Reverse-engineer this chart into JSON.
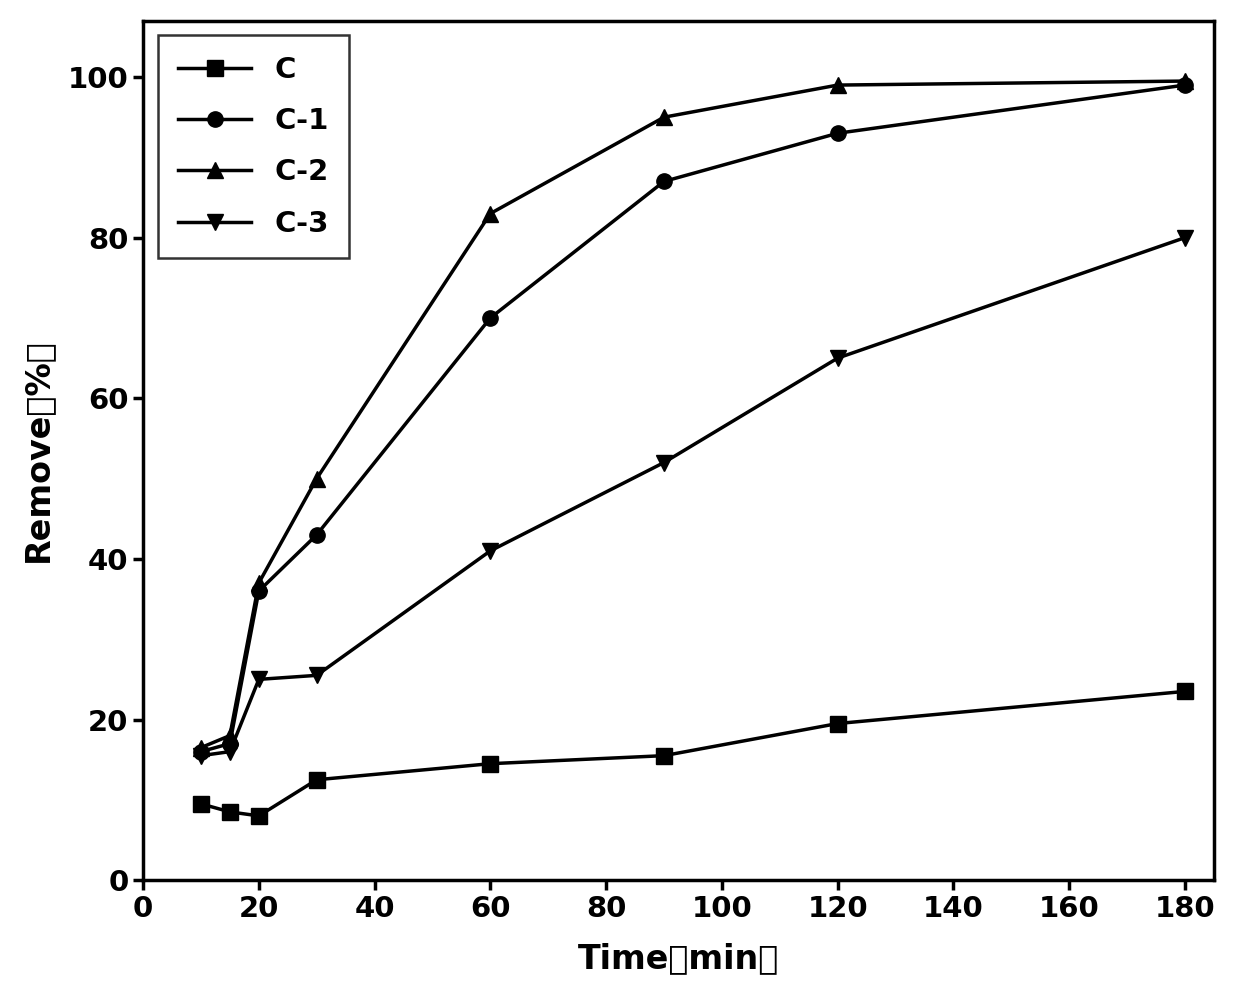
{
  "series": [
    {
      "label": "C",
      "marker": "s",
      "x": [
        10,
        15,
        20,
        30,
        60,
        90,
        120,
        180
      ],
      "y": [
        9.5,
        8.5,
        8.0,
        12.5,
        14.5,
        15.5,
        19.5,
        23.5
      ]
    },
    {
      "label": "C-1",
      "marker": "o",
      "x": [
        10,
        15,
        20,
        30,
        60,
        90,
        120,
        180
      ],
      "y": [
        16.0,
        17.0,
        36.0,
        43.0,
        70.0,
        87.0,
        93.0,
        99.0
      ]
    },
    {
      "label": "C-2",
      "marker": "^",
      "x": [
        10,
        15,
        20,
        30,
        60,
        90,
        120,
        180
      ],
      "y": [
        16.5,
        18.0,
        37.0,
        50.0,
        83.0,
        95.0,
        99.0,
        99.5
      ]
    },
    {
      "label": "C-3",
      "marker": "v",
      "x": [
        10,
        15,
        20,
        30,
        60,
        90,
        120,
        180
      ],
      "y": [
        15.5,
        16.0,
        25.0,
        25.5,
        41.0,
        52.0,
        65.0,
        80.0
      ]
    }
  ],
  "xlabel": "Time（min）",
  "ylabel": "Remove（%）",
  "xlim": [
    0,
    185
  ],
  "ylim": [
    0,
    107
  ],
  "xticks": [
    0,
    20,
    40,
    60,
    80,
    100,
    120,
    140,
    160,
    180
  ],
  "yticks": [
    0,
    20,
    40,
    60,
    80,
    100
  ],
  "line_color": "#000000",
  "line_width": 2.5,
  "marker_size": 11,
  "legend_loc": "upper left",
  "label_fontsize": 24,
  "tick_fontsize": 21,
  "legend_fontsize": 21
}
